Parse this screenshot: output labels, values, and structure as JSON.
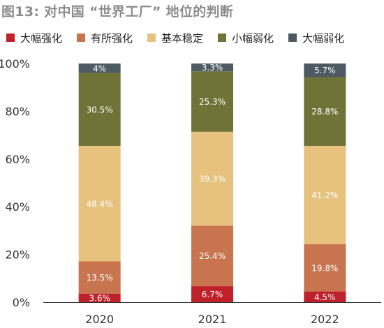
{
  "title": "图13: 对中国 “世界工厂” 地位的判断",
  "chart_data": {
    "type": "bar",
    "stacked": true,
    "categories": [
      "2020",
      "2021",
      "2022"
    ],
    "series": [
      {
        "name": "大幅强化",
        "color": "#c0202a",
        "values": [
          3.6,
          6.7,
          4.5
        ],
        "labels": [
          "3.6%",
          "6.7%",
          "4.5%"
        ]
      },
      {
        "name": "有所强化",
        "color": "#c8744f",
        "values": [
          13.5,
          25.4,
          19.8
        ],
        "labels": [
          "13.5%",
          "25.4%",
          "19.8%"
        ]
      },
      {
        "name": "基本稳定",
        "color": "#e6c27e",
        "values": [
          48.4,
          39.3,
          41.2
        ],
        "labels": [
          "48.4%",
          "39.3%",
          "41.2%"
        ]
      },
      {
        "name": "小幅弱化",
        "color": "#6f7337",
        "values": [
          30.5,
          25.3,
          28.8
        ],
        "labels": [
          "30.5%",
          "25.3%",
          "28.8%"
        ]
      },
      {
        "name": "大幅弱化",
        "color": "#4d5a62",
        "values": [
          4,
          3.3,
          5.7
        ],
        "labels": [
          "4%",
          "3.3%",
          "5.7%"
        ]
      }
    ],
    "yticks": [
      "0%",
      "20%",
      "40%",
      "60%",
      "80%",
      "100%"
    ],
    "ylim": [
      0,
      100
    ],
    "grid": false,
    "legend": "top"
  }
}
